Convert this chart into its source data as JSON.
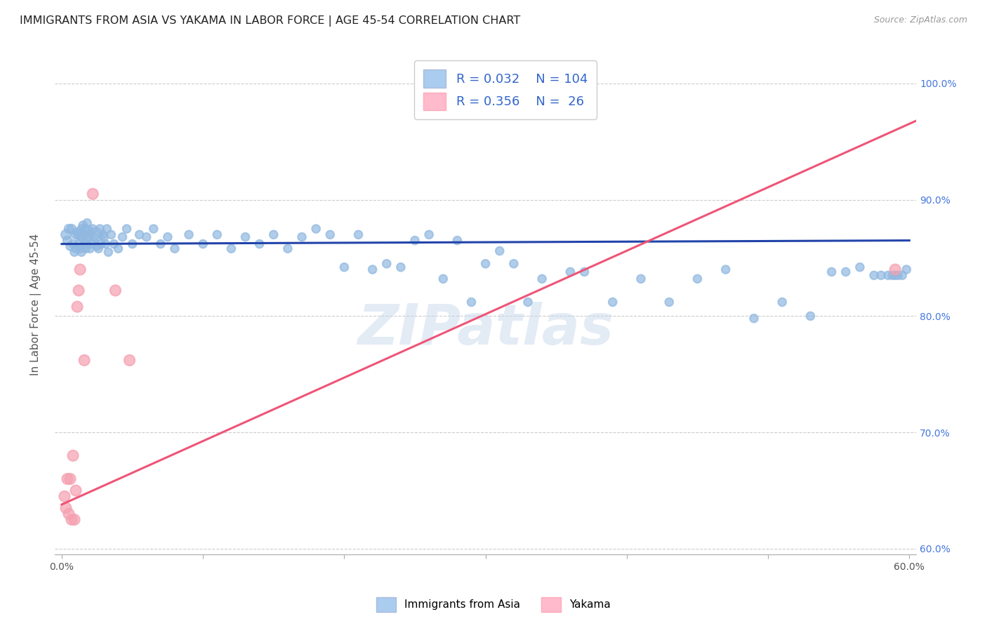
{
  "title": "IMMIGRANTS FROM ASIA VS YAKAMA IN LABOR FORCE | AGE 45-54 CORRELATION CHART",
  "source": "Source: ZipAtlas.com",
  "ylabel": "In Labor Force | Age 45-54",
  "xlim": [
    -0.005,
    0.605
  ],
  "ylim": [
    0.595,
    1.025
  ],
  "xticks": [
    0.0,
    0.1,
    0.2,
    0.3,
    0.4,
    0.5,
    0.6
  ],
  "xtick_labels": [
    "0.0%",
    "",
    "",
    "",
    "",
    "",
    "60.0%"
  ],
  "yticks": [
    0.6,
    0.7,
    0.8,
    0.9,
    1.0
  ],
  "ytick_labels_right": [
    "60.0%",
    "70.0%",
    "80.0%",
    "90.0%",
    "100.0%"
  ],
  "blue_color": "#90B8E0",
  "pink_color": "#F5A0B0",
  "blue_line_color": "#2244AA",
  "pink_line_color": "#EE5577",
  "legend_blue_color": "#AACCEE",
  "legend_pink_color": "#FFBBCC",
  "R_blue": 0.032,
  "N_blue": 104,
  "R_pink": 0.356,
  "N_pink": 26,
  "watermark": "ZIPatlas",
  "legend1": "Immigrants from Asia",
  "legend2": "Yakama",
  "blue_scatter_x": [
    0.003,
    0.004,
    0.005,
    0.006,
    0.007,
    0.008,
    0.009,
    0.01,
    0.01,
    0.011,
    0.012,
    0.012,
    0.013,
    0.013,
    0.014,
    0.014,
    0.015,
    0.015,
    0.016,
    0.016,
    0.017,
    0.017,
    0.018,
    0.018,
    0.019,
    0.019,
    0.02,
    0.02,
    0.021,
    0.022,
    0.023,
    0.024,
    0.025,
    0.026,
    0.027,
    0.028,
    0.029,
    0.03,
    0.031,
    0.032,
    0.033,
    0.035,
    0.037,
    0.04,
    0.043,
    0.046,
    0.05,
    0.055,
    0.06,
    0.065,
    0.07,
    0.075,
    0.08,
    0.09,
    0.1,
    0.11,
    0.12,
    0.13,
    0.14,
    0.15,
    0.16,
    0.17,
    0.18,
    0.19,
    0.2,
    0.21,
    0.22,
    0.23,
    0.24,
    0.25,
    0.26,
    0.27,
    0.28,
    0.29,
    0.3,
    0.31,
    0.32,
    0.33,
    0.34,
    0.36,
    0.37,
    0.39,
    0.41,
    0.43,
    0.45,
    0.47,
    0.49,
    0.51,
    0.53,
    0.545,
    0.555,
    0.565,
    0.575,
    0.58,
    0.585,
    0.588,
    0.59,
    0.592,
    0.595,
    0.598
  ],
  "blue_scatter_y": [
    0.87,
    0.865,
    0.875,
    0.86,
    0.875,
    0.862,
    0.855,
    0.87,
    0.858,
    0.872,
    0.862,
    0.87,
    0.858,
    0.868,
    0.875,
    0.855,
    0.868,
    0.878,
    0.862,
    0.87,
    0.875,
    0.858,
    0.862,
    0.88,
    0.868,
    0.874,
    0.87,
    0.858,
    0.862,
    0.875,
    0.868,
    0.87,
    0.86,
    0.858,
    0.875,
    0.862,
    0.87,
    0.868,
    0.862,
    0.875,
    0.855,
    0.87,
    0.862,
    0.858,
    0.868,
    0.875,
    0.862,
    0.87,
    0.868,
    0.875,
    0.862,
    0.868,
    0.858,
    0.87,
    0.862,
    0.87,
    0.858,
    0.868,
    0.862,
    0.87,
    0.858,
    0.868,
    0.875,
    0.87,
    0.842,
    0.87,
    0.84,
    0.845,
    0.842,
    0.865,
    0.87,
    0.832,
    0.865,
    0.812,
    0.845,
    0.856,
    0.845,
    0.812,
    0.832,
    0.838,
    0.838,
    0.812,
    0.832,
    0.812,
    0.832,
    0.84,
    0.798,
    0.812,
    0.8,
    0.838,
    0.838,
    0.842,
    0.835,
    0.835,
    0.835,
    0.835,
    0.835,
    0.835,
    0.835,
    0.84
  ],
  "blue_scatter_size": [
    100,
    80,
    80,
    70,
    80,
    70,
    70,
    80,
    70,
    80,
    70,
    80,
    70,
    70,
    70,
    70,
    70,
    70,
    70,
    80,
    70,
    70,
    70,
    70,
    70,
    70,
    70,
    70,
    70,
    70,
    70,
    200,
    70,
    70,
    70,
    70,
    70,
    70,
    70,
    70,
    70,
    70,
    70,
    70,
    70,
    70,
    70,
    70,
    70,
    70,
    70,
    70,
    70,
    70,
    70,
    70,
    70,
    70,
    70,
    70,
    70,
    70,
    70,
    70,
    70,
    70,
    70,
    70,
    70,
    70,
    70,
    70,
    70,
    70,
    70,
    70,
    70,
    70,
    70,
    70,
    70,
    70,
    70,
    70,
    70,
    70,
    70,
    70,
    70,
    70,
    70,
    70,
    70,
    70,
    70,
    70,
    70,
    70,
    70,
    70
  ],
  "pink_scatter_x": [
    0.002,
    0.003,
    0.004,
    0.005,
    0.006,
    0.007,
    0.008,
    0.009,
    0.01,
    0.011,
    0.012,
    0.013,
    0.016,
    0.022,
    0.038,
    0.048,
    0.59
  ],
  "pink_scatter_y": [
    0.645,
    0.635,
    0.66,
    0.63,
    0.66,
    0.625,
    0.68,
    0.625,
    0.65,
    0.808,
    0.822,
    0.84,
    0.762,
    0.905,
    0.822,
    0.762,
    0.84
  ],
  "pink_scatter_size": [
    120,
    120,
    120,
    120,
    120,
    120,
    120,
    120,
    120,
    120,
    120,
    120,
    120,
    120,
    120,
    120,
    120
  ],
  "blue_trend_x": [
    0.0,
    0.6
  ],
  "blue_trend_y": [
    0.862,
    0.865
  ],
  "pink_trend_x": [
    0.0,
    0.605
  ],
  "pink_trend_y": [
    0.638,
    0.968
  ]
}
